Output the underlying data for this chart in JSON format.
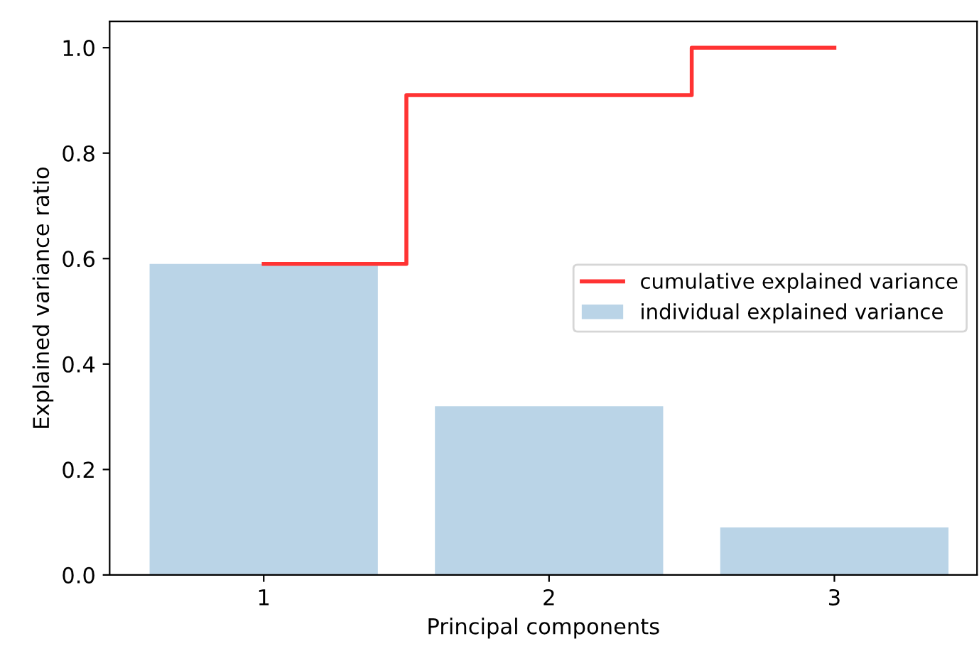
{
  "chart_data": {
    "type": "bar",
    "xlabel": "Principal components",
    "ylabel": "Explained variance ratio",
    "x": [
      1,
      2,
      3
    ],
    "series": [
      {
        "name": "individual explained variance",
        "color": "#bad4e7",
        "values": [
          0.59,
          0.32,
          0.09
        ]
      },
      {
        "name": "cumulative explained variance",
        "type": "step",
        "color": "#ff3333",
        "values": [
          0.59,
          0.91,
          1.0
        ]
      }
    ],
    "xlim": [
      0.46,
      3.5
    ],
    "xticks": [
      1,
      2,
      3
    ],
    "ylim": [
      0,
      1.05
    ],
    "yticks": [
      {
        "value": 0,
        "label": "0.0"
      },
      {
        "value": 0.2,
        "label": "0.2"
      },
      {
        "value": 0.4,
        "label": "0.4"
      },
      {
        "value": 0.6,
        "label": "0.6"
      },
      {
        "value": 0.8,
        "label": "0.8"
      },
      {
        "value": 1.0,
        "label": "1.0"
      }
    ],
    "legend": "center right"
  }
}
